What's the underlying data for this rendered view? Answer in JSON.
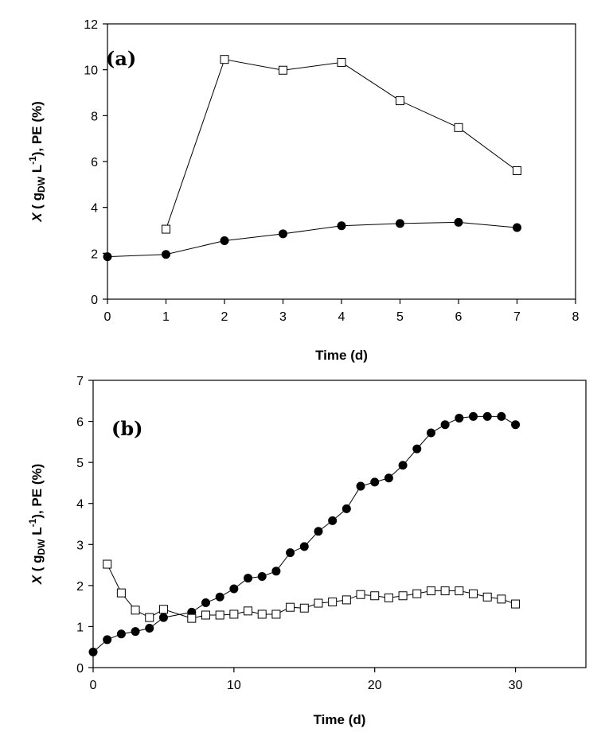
{
  "chart_data": [
    {
      "type": "line",
      "panel_label": "(a)",
      "xlabel": "Time (d)",
      "ylabel": {
        "italic": "X",
        "main": " ( g",
        "sub": "DW",
        "unit": " L",
        "sup": "-1",
        "tail": "), PE (%)"
      },
      "xlim": [
        0,
        8
      ],
      "ylim": [
        0,
        12
      ],
      "xticks": [
        0,
        1,
        2,
        3,
        4,
        5,
        6,
        7,
        8
      ],
      "yticks": [
        0,
        2,
        4,
        6,
        8,
        10,
        12
      ],
      "series": [
        {
          "marker": "filled-circle",
          "x": [
            0,
            1,
            2,
            3,
            4,
            5,
            6,
            7
          ],
          "y": [
            1.85,
            1.95,
            2.55,
            2.85,
            3.2,
            3.3,
            3.35,
            3.12
          ]
        },
        {
          "marker": "open-square",
          "x": [
            1,
            2,
            3,
            4,
            5,
            6,
            7
          ],
          "y": [
            3.05,
            10.45,
            9.98,
            10.32,
            8.65,
            7.48,
            5.6
          ]
        }
      ]
    },
    {
      "type": "line",
      "panel_label": "(b)",
      "xlabel": "Time (d)",
      "ylabel": {
        "italic": "X",
        "main": " ( g",
        "sub": "DW",
        "unit": " L",
        "sup": "-1",
        "tail": "), PE (%)"
      },
      "xlim": [
        0,
        35
      ],
      "ylim": [
        0,
        7
      ],
      "xticks": [
        0,
        10,
        20,
        30
      ],
      "yticks": [
        0,
        1,
        2,
        3,
        4,
        5,
        6,
        7
      ],
      "series": [
        {
          "marker": "filled-circle",
          "x": [
            0,
            1,
            2,
            3,
            4,
            5,
            7,
            8,
            9,
            10,
            11,
            12,
            13,
            14,
            15,
            16,
            17,
            18,
            19,
            20,
            21,
            22,
            23,
            24,
            25,
            26,
            27,
            28,
            29,
            30
          ],
          "y": [
            0.38,
            0.68,
            0.82,
            0.88,
            0.96,
            1.22,
            1.35,
            1.58,
            1.72,
            1.92,
            2.18,
            2.22,
            2.35,
            2.8,
            2.95,
            3.32,
            3.58,
            3.87,
            4.42,
            4.52,
            4.62,
            4.93,
            5.33,
            5.72,
            5.92,
            6.08,
            6.12,
            6.12,
            6.12,
            5.92
          ]
        },
        {
          "marker": "open-square",
          "x": [
            1,
            2,
            3,
            4,
            5,
            7,
            8,
            9,
            10,
            11,
            12,
            13,
            14,
            15,
            16,
            17,
            18,
            19,
            20,
            21,
            22,
            23,
            24,
            25,
            26,
            27,
            28,
            29,
            30
          ],
          "y": [
            2.52,
            1.82,
            1.4,
            1.22,
            1.42,
            1.2,
            1.28,
            1.28,
            1.3,
            1.38,
            1.3,
            1.3,
            1.47,
            1.45,
            1.57,
            1.6,
            1.65,
            1.78,
            1.75,
            1.7,
            1.75,
            1.8,
            1.87,
            1.87,
            1.87,
            1.8,
            1.72,
            1.67,
            1.55
          ]
        }
      ]
    }
  ],
  "colors": {
    "ink": "#000000",
    "paper": "#ffffff"
  }
}
